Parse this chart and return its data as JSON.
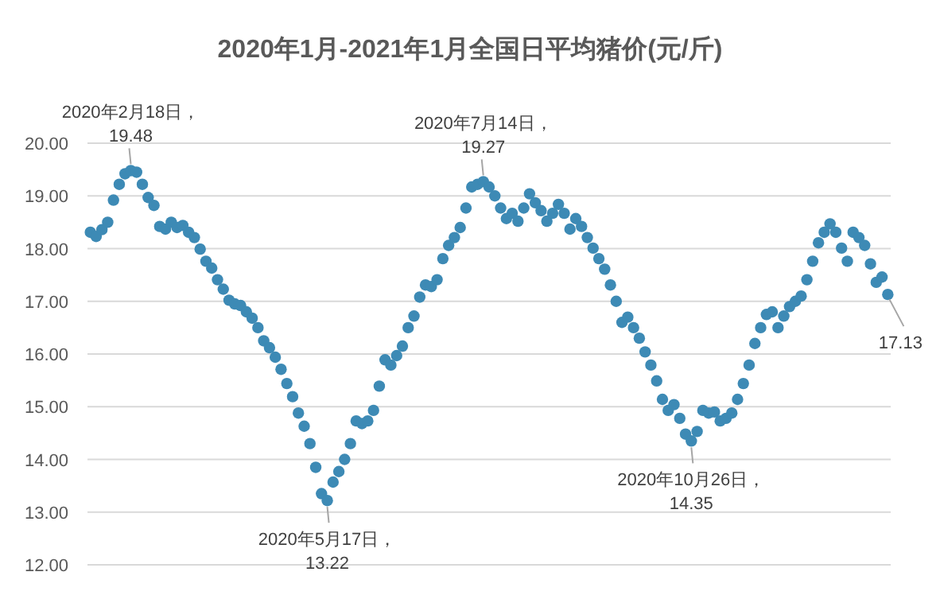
{
  "chart_data": {
    "type": "scatter",
    "title": "2020年1月-2021年1月全国日平均猪价(元/斤)",
    "categories": [
      null,
      null,
      null,
      null,
      null,
      null,
      null,
      null,
      null,
      null,
      null,
      null,
      null,
      null,
      null,
      null,
      null,
      null,
      null,
      null,
      null,
      null,
      null,
      null,
      null,
      null,
      null,
      null,
      null,
      null,
      null,
      null,
      null,
      null,
      null,
      null,
      null,
      null,
      null,
      null,
      null,
      null,
      null,
      null,
      null,
      null,
      null,
      null,
      null,
      null,
      null,
      null,
      null,
      null,
      null,
      null,
      null,
      null,
      null,
      null,
      null,
      null,
      null,
      null,
      null,
      null,
      null,
      null,
      null,
      null,
      null,
      null,
      null,
      null,
      null,
      null,
      null,
      null,
      null,
      null,
      null,
      null,
      null,
      null,
      null,
      null,
      null,
      null,
      null,
      null,
      null,
      null,
      null,
      null,
      null,
      null,
      null,
      null,
      null,
      null,
      null,
      null,
      null,
      null,
      null,
      null,
      null,
      null,
      null,
      null,
      null,
      null,
      null,
      null,
      null,
      null,
      null,
      null,
      null,
      null,
      null,
      null,
      null,
      null,
      null,
      null,
      null,
      null,
      null,
      null,
      null,
      null,
      null,
      null,
      null,
      null,
      null,
      null,
      null
    ],
    "values": [
      18.31,
      18.23,
      18.36,
      18.5,
      18.92,
      19.22,
      19.42,
      19.48,
      19.45,
      19.22,
      18.97,
      18.82,
      18.42,
      18.37,
      18.5,
      18.4,
      18.44,
      18.31,
      18.21,
      17.99,
      17.76,
      17.63,
      17.41,
      17.23,
      17.02,
      16.95,
      16.92,
      16.8,
      16.68,
      16.5,
      16.25,
      16.12,
      15.94,
      15.71,
      15.44,
      15.19,
      14.88,
      14.63,
      14.3,
      13.85,
      13.35,
      13.22,
      13.57,
      13.77,
      14.0,
      14.3,
      14.73,
      14.68,
      14.73,
      14.93,
      15.39,
      15.89,
      15.79,
      15.97,
      16.15,
      16.5,
      16.72,
      17.08,
      17.31,
      17.28,
      17.41,
      17.81,
      18.06,
      18.21,
      18.4,
      18.77,
      19.17,
      19.22,
      19.27,
      19.17,
      19.0,
      18.77,
      18.57,
      18.67,
      18.52,
      18.77,
      19.04,
      18.87,
      18.72,
      18.52,
      18.67,
      18.84,
      18.67,
      18.37,
      18.57,
      18.42,
      18.21,
      18.01,
      17.81,
      17.61,
      17.31,
      17.0,
      16.6,
      16.7,
      16.5,
      16.3,
      16.04,
      15.79,
      15.49,
      15.14,
      14.93,
      15.04,
      14.78,
      14.48,
      14.35,
      14.53,
      14.93,
      14.88,
      14.9,
      14.73,
      14.78,
      14.88,
      15.14,
      15.44,
      15.79,
      16.2,
      16.5,
      16.75,
      16.8,
      16.5,
      16.72,
      16.9,
      17.0,
      17.1,
      17.41,
      17.76,
      18.11,
      18.31,
      18.47,
      18.31,
      18.01,
      17.76,
      18.31,
      18.21,
      18.06,
      17.71,
      17.36,
      17.46,
      17.13
    ],
    "color": "#3d8ab5",
    "marker": "circle",
    "ylim": [
      12,
      20
    ],
    "yticks": [
      {
        "value": 12,
        "label": "12.00"
      },
      {
        "value": 13,
        "label": "13.00"
      },
      {
        "value": 14,
        "label": "14.00"
      },
      {
        "value": 15,
        "label": "15.00"
      },
      {
        "value": 16,
        "label": "16.00"
      },
      {
        "value": 17,
        "label": "17.00"
      },
      {
        "value": 18,
        "label": "18.00"
      },
      {
        "value": 19,
        "label": "19.00"
      },
      {
        "value": 20,
        "label": "20.00"
      }
    ],
    "grid": "y",
    "annotations": [
      {
        "text": "2020年2月18日，\n19.48",
        "y": 19.48
      },
      {
        "text": "2020年5月17日，\n13.22",
        "y": 13.22
      },
      {
        "text": "2020年7月14日，\n19.27",
        "y": 19.27
      },
      {
        "text": "2020年10月26日，\n14.35",
        "y": 14.35
      },
      {
        "text": "17.13",
        "y": 17.13
      }
    ]
  }
}
